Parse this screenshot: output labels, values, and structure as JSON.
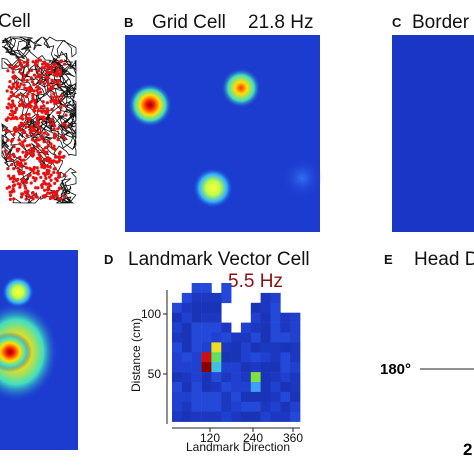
{
  "panels": [
    {
      "title": "Cell"
    },
    {
      "letter": "B",
      "title": "Grid Cell",
      "rate": "21.8 Hz"
    },
    {
      "letter": "C",
      "title": "Border"
    },
    {
      "letter": "D",
      "title": "Landmark Vector Cell",
      "rate": "5.5 Hz",
      "y_axis_label": "Distance (cm)",
      "x_axis_label": "Landmark Direction",
      "yticks": [
        100,
        50
      ],
      "xticks": [
        120,
        240,
        360
      ]
    },
    {
      "letter": "E",
      "title": "Head D",
      "angle_label": "180°",
      "corner_label": "2"
    }
  ]
}
